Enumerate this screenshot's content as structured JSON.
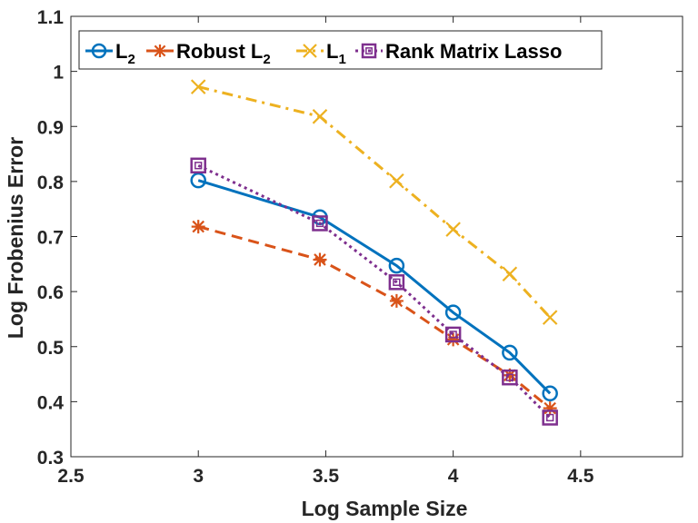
{
  "chart_data": {
    "type": "line",
    "xlabel": "Log Sample Size",
    "ylabel": "Log Frobenius Error",
    "xlim": [
      2.5,
      4.9
    ],
    "ylim": [
      0.3,
      1.1
    ],
    "xticks": [
      "2.5",
      "3",
      "3.5",
      "4",
      "4.5"
    ],
    "xtick_values": [
      2.5,
      3,
      3.5,
      4,
      4.5
    ],
    "yticks": [
      "0.3",
      "0.4",
      "0.5",
      "0.6",
      "0.7",
      "0.8",
      "0.9",
      "1",
      "1.1"
    ],
    "ytick_values": [
      0.3,
      0.4,
      0.5,
      0.6,
      0.7,
      0.8,
      0.9,
      1.0,
      1.1
    ],
    "x": [
      3.0,
      3.477,
      3.778,
      4.0,
      4.222,
      4.38
    ],
    "grid": false,
    "legend_position": "top",
    "series": [
      {
        "name": "L2",
        "label_base": "L",
        "label_sub": "2",
        "color": "#0072BD",
        "line": "solid",
        "marker": "circle",
        "values": [
          0.802,
          0.735,
          0.647,
          0.562,
          0.489,
          0.415
        ]
      },
      {
        "name": "Robust L2",
        "label_base": "Robust L",
        "label_sub": "2",
        "color": "#D95319",
        "line": "dashed",
        "marker": "asterisk",
        "values": [
          0.718,
          0.658,
          0.583,
          0.513,
          0.448,
          0.388
        ]
      },
      {
        "name": "L1",
        "label_base": "L",
        "label_sub": "1",
        "color": "#EDB120",
        "line": "dashdot",
        "marker": "x",
        "values": [
          0.972,
          0.918,
          0.801,
          0.713,
          0.632,
          0.553
        ]
      },
      {
        "name": "Rank Matrix Lasso",
        "label_base": "Rank Matrix Lasso",
        "label_sub": "",
        "color": "#7E2F8E",
        "line": "dotted",
        "marker": "square",
        "values": [
          0.829,
          0.724,
          0.617,
          0.522,
          0.444,
          0.371
        ]
      }
    ]
  }
}
